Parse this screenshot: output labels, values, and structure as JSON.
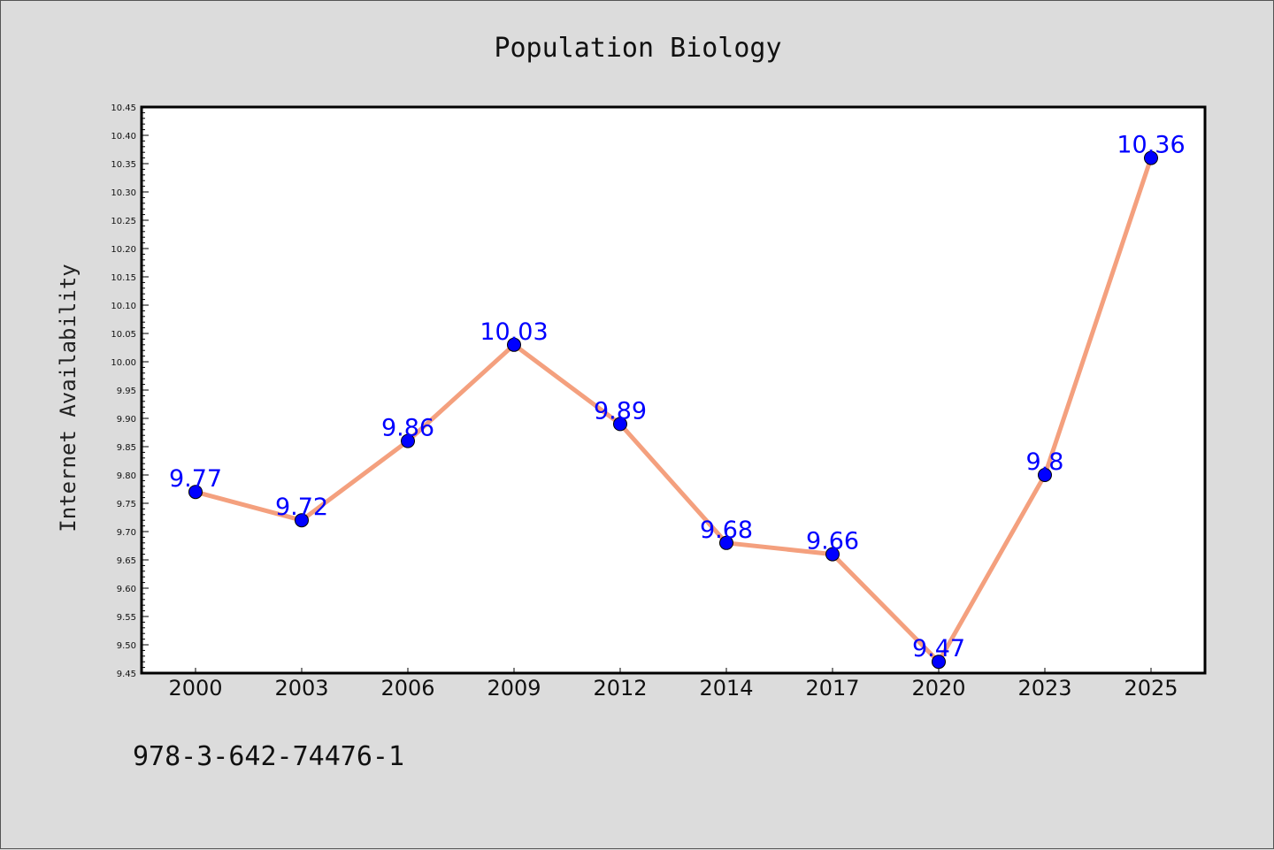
{
  "footer": {
    "isbn": "978-3-642-74476-1"
  },
  "colors": {
    "line": "#f4a07e",
    "marker": "#0000ff",
    "label": "#0000ff",
    "background": "#dcdcdc",
    "plot_background": "#ffffff"
  },
  "chart_data": {
    "type": "line",
    "title": "Population Biology",
    "xlabel": "",
    "ylabel": "Internet Availability",
    "categories": [
      "2000",
      "2003",
      "2006",
      "2009",
      "2012",
      "2014",
      "2017",
      "2020",
      "2023",
      "2025"
    ],
    "series": [
      {
        "values": [
          9.77,
          9.72,
          9.86,
          10.03,
          9.89,
          9.68,
          9.66,
          9.47,
          9.8,
          10.36
        ]
      }
    ],
    "data_labels": [
      "9.77",
      "9.72",
      "9.86",
      "10.03",
      "9.89",
      "9.68",
      "9.66",
      "9.47",
      "9.8",
      "10.36"
    ],
    "ylim": [
      9.45,
      10.45
    ],
    "yticks": [
      "9.45",
      "9.50",
      "9.55",
      "9.60",
      "9.65",
      "9.70",
      "9.75",
      "9.80",
      "9.85",
      "9.90",
      "9.95",
      "10.00",
      "10.05",
      "10.10",
      "10.15",
      "10.20",
      "10.25",
      "10.30",
      "10.35",
      "10.40",
      "10.45"
    ],
    "grid": false,
    "legend": "none"
  }
}
